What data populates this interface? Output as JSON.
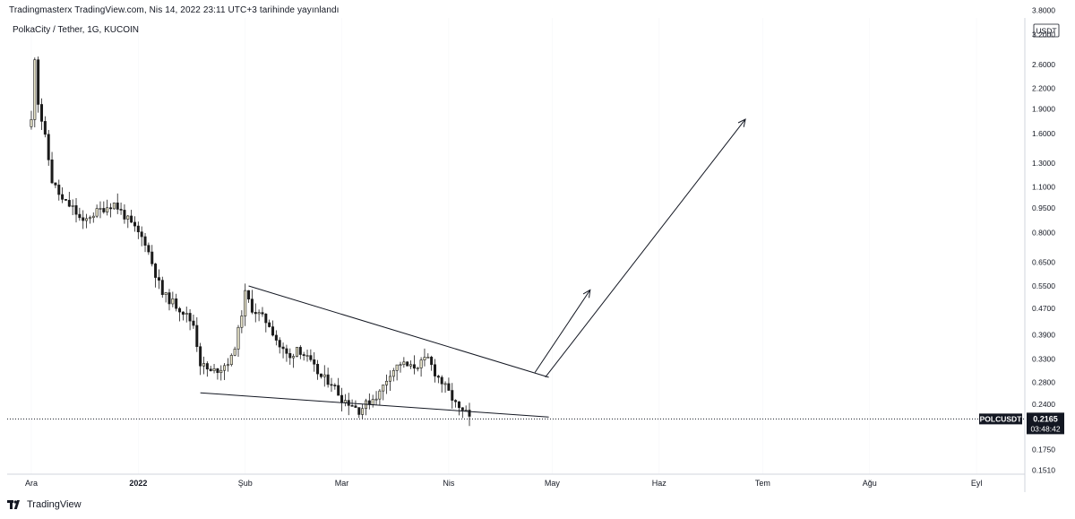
{
  "header": {
    "published": "Tradingmasterx TradingView.com, Nis 14, 2022 23:11 UTC+3 tarihinde yayınlandı"
  },
  "chart_data": {
    "type": "candlestick",
    "title": "PolkaCity / Tether, 1G, KUCOIN",
    "symbol": "POLCUSDT",
    "last_price": "0.2165",
    "countdown": "03:48:42",
    "currency": "USDT",
    "y_scale": "log",
    "y_range": [
      0.147,
      3.6
    ],
    "y_ticks": [
      "3.8000",
      "3.2000",
      "2.6000",
      "2.2000",
      "1.9000",
      "1.6000",
      "1.3000",
      "1.1000",
      "0.9500",
      "0.8000",
      "0.6500",
      "0.5500",
      "0.4700",
      "0.3900",
      "0.3300",
      "0.2800",
      "0.2400",
      "0.1750",
      "0.1510"
    ],
    "x_ticks": [
      "Ara",
      "2022",
      "Şub",
      "Mar",
      "Nis",
      "May",
      "Haz",
      "Tem",
      "Ağu",
      "Eyl"
    ],
    "x_range": [
      "2021-11-24",
      "2022-09-15"
    ],
    "tick_dates": [
      "2021-12-01",
      "2022-01-01",
      "2022-02-01",
      "2022-03-01",
      "2022-04-01",
      "2022-05-01",
      "2022-06-01",
      "2022-07-01",
      "2022-08-01",
      "2022-09-01"
    ],
    "colors": {
      "up": "#e8e4c8",
      "down": "#1a1a1a",
      "wick": "#1a1a1a",
      "line": "#131722",
      "grid": "#e0e3eb"
    },
    "anchors": [
      {
        "date": "2021-12-01",
        "price": 1.75
      },
      {
        "date": "2021-12-02",
        "price": 2.75
      },
      {
        "date": "2021-12-03",
        "price": 2.0
      },
      {
        "date": "2021-12-05",
        "price": 1.55
      },
      {
        "date": "2021-12-07",
        "price": 1.15
      },
      {
        "date": "2021-12-10",
        "price": 1.0
      },
      {
        "date": "2021-12-13",
        "price": 0.95
      },
      {
        "date": "2021-12-16",
        "price": 0.85
      },
      {
        "date": "2021-12-18",
        "price": 0.9
      },
      {
        "date": "2021-12-22",
        "price": 0.95
      },
      {
        "date": "2021-12-25",
        "price": 0.98
      },
      {
        "date": "2021-12-28",
        "price": 0.9
      },
      {
        "date": "2021-12-31",
        "price": 0.82
      },
      {
        "date": "2022-01-03",
        "price": 0.75
      },
      {
        "date": "2022-01-06",
        "price": 0.6
      },
      {
        "date": "2022-01-08",
        "price": 0.52
      },
      {
        "date": "2022-01-11",
        "price": 0.49
      },
      {
        "date": "2022-01-14",
        "price": 0.46
      },
      {
        "date": "2022-01-17",
        "price": 0.42
      },
      {
        "date": "2022-01-19",
        "price": 0.32
      },
      {
        "date": "2022-01-22",
        "price": 0.3
      },
      {
        "date": "2022-01-25",
        "price": 0.31
      },
      {
        "date": "2022-01-28",
        "price": 0.33
      },
      {
        "date": "2022-01-30",
        "price": 0.4
      },
      {
        "date": "2022-02-01",
        "price": 0.52
      },
      {
        "date": "2022-02-03",
        "price": 0.47
      },
      {
        "date": "2022-02-05",
        "price": 0.45
      },
      {
        "date": "2022-02-08",
        "price": 0.42
      },
      {
        "date": "2022-02-11",
        "price": 0.36
      },
      {
        "date": "2022-02-14",
        "price": 0.33
      },
      {
        "date": "2022-02-16",
        "price": 0.36
      },
      {
        "date": "2022-02-19",
        "price": 0.33
      },
      {
        "date": "2022-02-23",
        "price": 0.29
      },
      {
        "date": "2022-02-26",
        "price": 0.28
      },
      {
        "date": "2022-03-01",
        "price": 0.25
      },
      {
        "date": "2022-03-04",
        "price": 0.24
      },
      {
        "date": "2022-03-06",
        "price": 0.23
      },
      {
        "date": "2022-03-09",
        "price": 0.245
      },
      {
        "date": "2022-03-12",
        "price": 0.26
      },
      {
        "date": "2022-03-15",
        "price": 0.3
      },
      {
        "date": "2022-03-18",
        "price": 0.32
      },
      {
        "date": "2022-03-21",
        "price": 0.31
      },
      {
        "date": "2022-03-24",
        "price": 0.32
      },
      {
        "date": "2022-03-26",
        "price": 0.33
      },
      {
        "date": "2022-03-28",
        "price": 0.3
      },
      {
        "date": "2022-03-31",
        "price": 0.27
      },
      {
        "date": "2022-04-02",
        "price": 0.25
      },
      {
        "date": "2022-04-04",
        "price": 0.23
      },
      {
        "date": "2022-04-06",
        "price": 0.225
      },
      {
        "date": "2022-04-07",
        "price": 0.2165
      }
    ],
    "drawings": [
      {
        "name": "upper-trendline",
        "from": {
          "date": "2022-02-02",
          "price": 0.55
        },
        "to": {
          "date": "2022-04-30",
          "price": 0.29
        }
      },
      {
        "name": "lower-trendline",
        "from": {
          "date": "2022-01-19",
          "price": 0.26
        },
        "to": {
          "date": "2022-04-30",
          "price": 0.2195
        }
      },
      {
        "name": "projection-arrow-short",
        "from": {
          "date": "2022-04-26",
          "price": 0.3
        },
        "to": {
          "date": "2022-05-12",
          "price": 0.535
        }
      },
      {
        "name": "projection-arrow-long",
        "from": {
          "date": "2022-04-29",
          "price": 0.29
        },
        "to": {
          "date": "2022-06-26",
          "price": 1.77
        }
      }
    ]
  },
  "footer": {
    "brand": "TradingView"
  }
}
